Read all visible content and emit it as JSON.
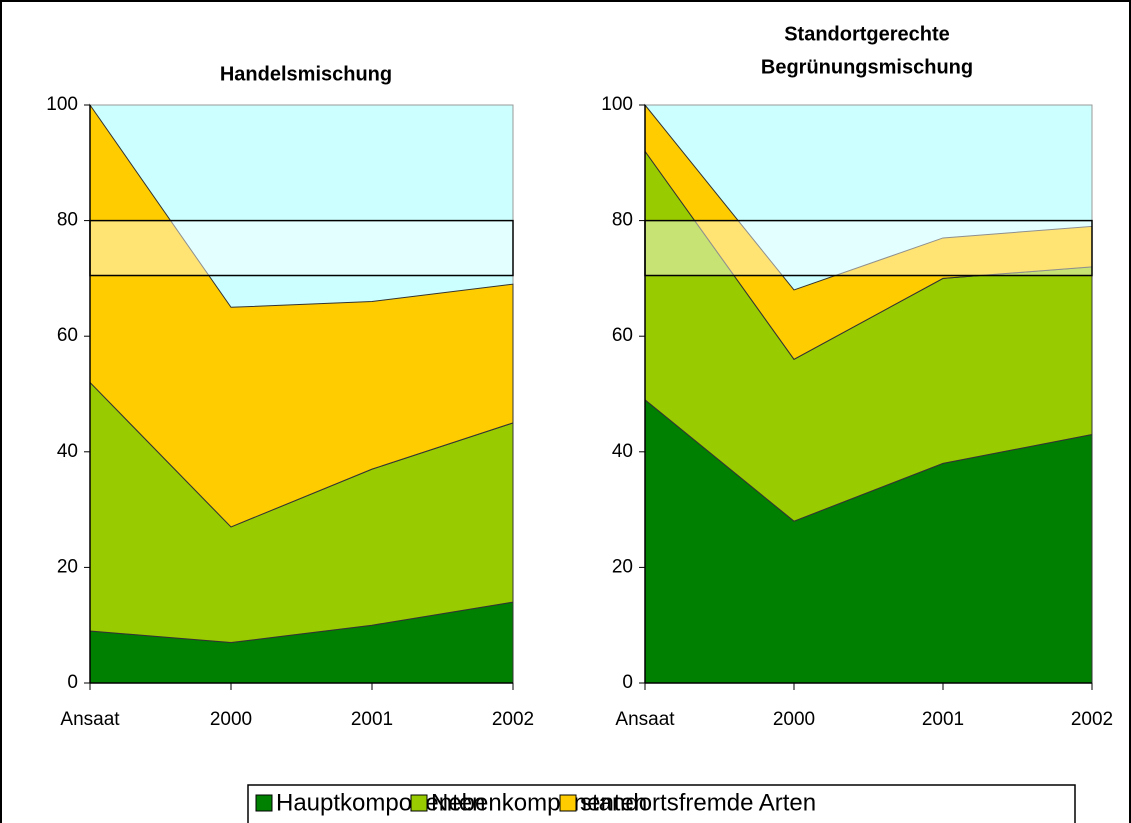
{
  "chart_data": [
    {
      "type": "stacked_area",
      "title": [
        "Handelsmischung"
      ],
      "categories": [
        "Ansaat",
        "2000",
        "2001",
        "2002"
      ],
      "series": [
        {
          "name": "Hauptkomponenten",
          "color": "#008000",
          "values": [
            9,
            7,
            10,
            14
          ]
        },
        {
          "name": "Nebenkomponenten",
          "color": "#99cc00",
          "values": [
            43,
            20,
            27,
            31
          ]
        },
        {
          "name": "standortsfremde Arten",
          "color": "#ffcc00",
          "values": [
            48,
            38,
            29,
            24
          ]
        }
      ],
      "background": "#ccffff",
      "band": [
        70.5,
        80
      ],
      "ylim": [
        0,
        100
      ],
      "yticks": [
        0,
        20,
        40,
        60,
        80,
        100
      ]
    },
    {
      "type": "stacked_area",
      "title": [
        "Standortgerechte",
        "Begrünungsmischung"
      ],
      "categories": [
        "Ansaat",
        "2000",
        "2001",
        "2002"
      ],
      "series": [
        {
          "name": "Hauptkomponenten",
          "color": "#008000",
          "values": [
            49,
            28,
            38,
            43
          ]
        },
        {
          "name": "Nebenkomponenten",
          "color": "#99cc00",
          "values": [
            43,
            28,
            32,
            29
          ]
        },
        {
          "name": "standortsfremde Arten",
          "color": "#ffcc00",
          "values": [
            8,
            12,
            7,
            7
          ]
        }
      ],
      "background": "#ccffff",
      "band": [
        70.5,
        80
      ],
      "ylim": [
        0,
        100
      ],
      "yticks": [
        0,
        20,
        40,
        60,
        80,
        100
      ]
    }
  ]
}
